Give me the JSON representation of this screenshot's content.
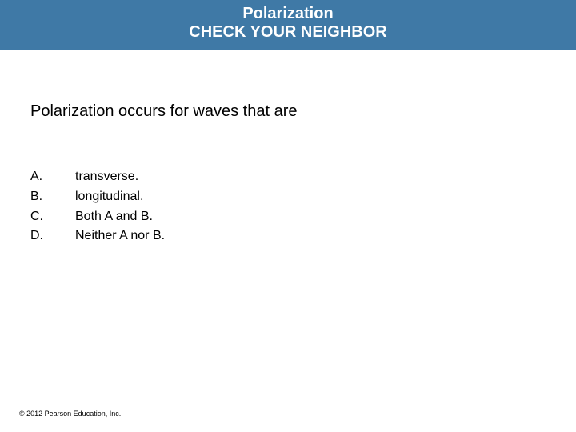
{
  "header": {
    "title": "Polarization",
    "subtitle": "CHECK YOUR NEIGHBOR",
    "background_color": "#3f79a6",
    "text_color": "#ffffff"
  },
  "question": {
    "text": "Polarization occurs for waves that are"
  },
  "options": [
    {
      "letter": "A.",
      "text": "transverse."
    },
    {
      "letter": "B.",
      "text": "longitudinal."
    },
    {
      "letter": "C.",
      "text": "Both A and B."
    },
    {
      "letter": "D.",
      "text": "Neither A nor B."
    }
  ],
  "footer": {
    "text": "© 2012 Pearson Education, Inc."
  }
}
